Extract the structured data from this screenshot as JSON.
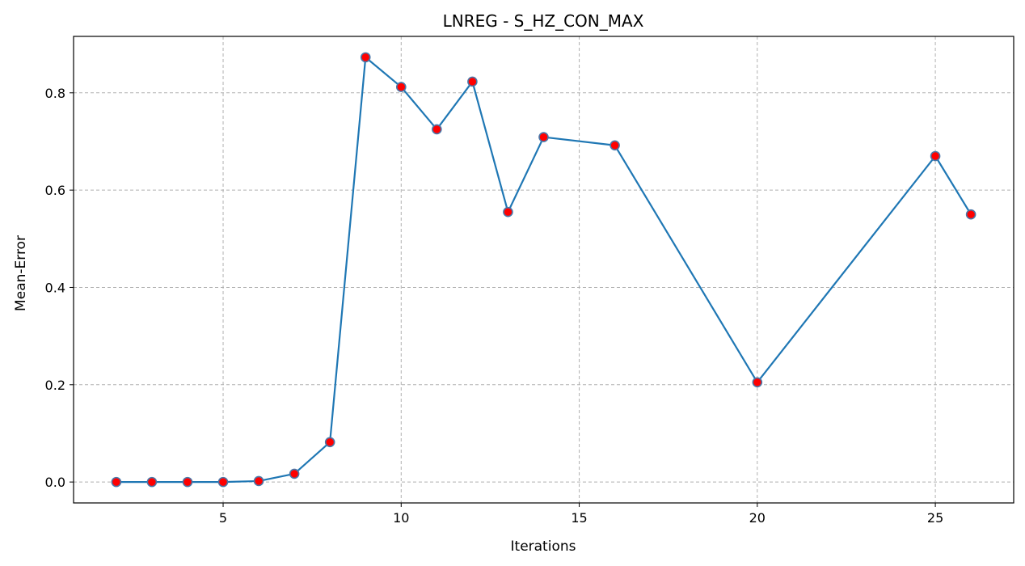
{
  "chart_data": {
    "type": "line",
    "title": "LNREG - S_HZ_CON_MAX",
    "xlabel": "Iterations",
    "ylabel": "Mean-Error",
    "xlim": [
      0.8,
      27.2
    ],
    "ylim": [
      -0.043,
      0.916
    ],
    "xticks": [
      5,
      10,
      15,
      20,
      25
    ],
    "yticks": [
      0.0,
      0.2,
      0.4,
      0.6,
      0.8
    ],
    "xtick_labels": [
      "5",
      "10",
      "15",
      "20",
      "25"
    ],
    "ytick_labels": [
      "0.0",
      "0.2",
      "0.4",
      "0.6",
      "0.8"
    ],
    "grid": true,
    "series": [
      {
        "x": [
          2,
          3,
          4,
          5,
          6,
          7,
          8,
          9,
          10,
          11,
          12,
          13,
          14,
          16,
          20,
          25,
          26
        ],
        "y": [
          0.0,
          0.0,
          0.0,
          0.0,
          0.002,
          0.017,
          0.082,
          0.873,
          0.812,
          0.725,
          0.823,
          0.555,
          0.709,
          0.692,
          0.205,
          0.67,
          0.55
        ],
        "line_color": "#1f77b4",
        "marker_color": "#ff0000",
        "marker_edge_color": "#4a77a8"
      }
    ]
  }
}
